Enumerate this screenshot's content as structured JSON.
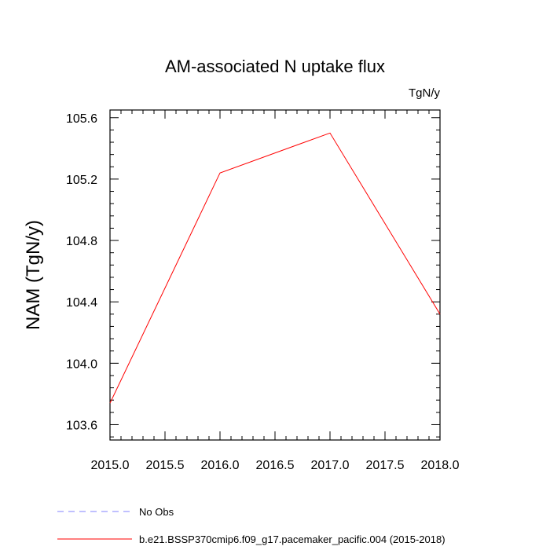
{
  "chart_data": {
    "type": "line",
    "title": "AM-associated N uptake flux",
    "units": "TgN/y",
    "ylabel": "NAM  (TgN/y)",
    "xlabel": "",
    "xlim": [
      2015.0,
      2018.0
    ],
    "ylim": [
      103.5,
      105.65
    ],
    "x_ticks": [
      "2015.0",
      "2015.5",
      "2016.0",
      "2016.5",
      "2017.0",
      "2017.5",
      "2018.0"
    ],
    "y_ticks": [
      "103.6",
      "104.0",
      "104.4",
      "104.8",
      "105.2",
      "105.6"
    ],
    "grid": false,
    "series": [
      {
        "name": "b.e21.BSSP370cmip6.f09_g17.pacemaker_pacific.004 (2015-2018)",
        "color": "#ff0000",
        "style": "solid",
        "x": [
          2015.0,
          2016.0,
          2017.0,
          2018.0
        ],
        "y": [
          103.74,
          105.24,
          105.5,
          104.32
        ]
      }
    ],
    "legend": [
      {
        "label": "No Obs",
        "color": "#8080ff",
        "style": "dashed"
      },
      {
        "label": "b.e21.BSSP370cmip6.f09_g17.pacemaker_pacific.004 (2015-2018)",
        "color": "#ff0000",
        "style": "solid"
      }
    ],
    "legend_placement": "bottom-left"
  }
}
